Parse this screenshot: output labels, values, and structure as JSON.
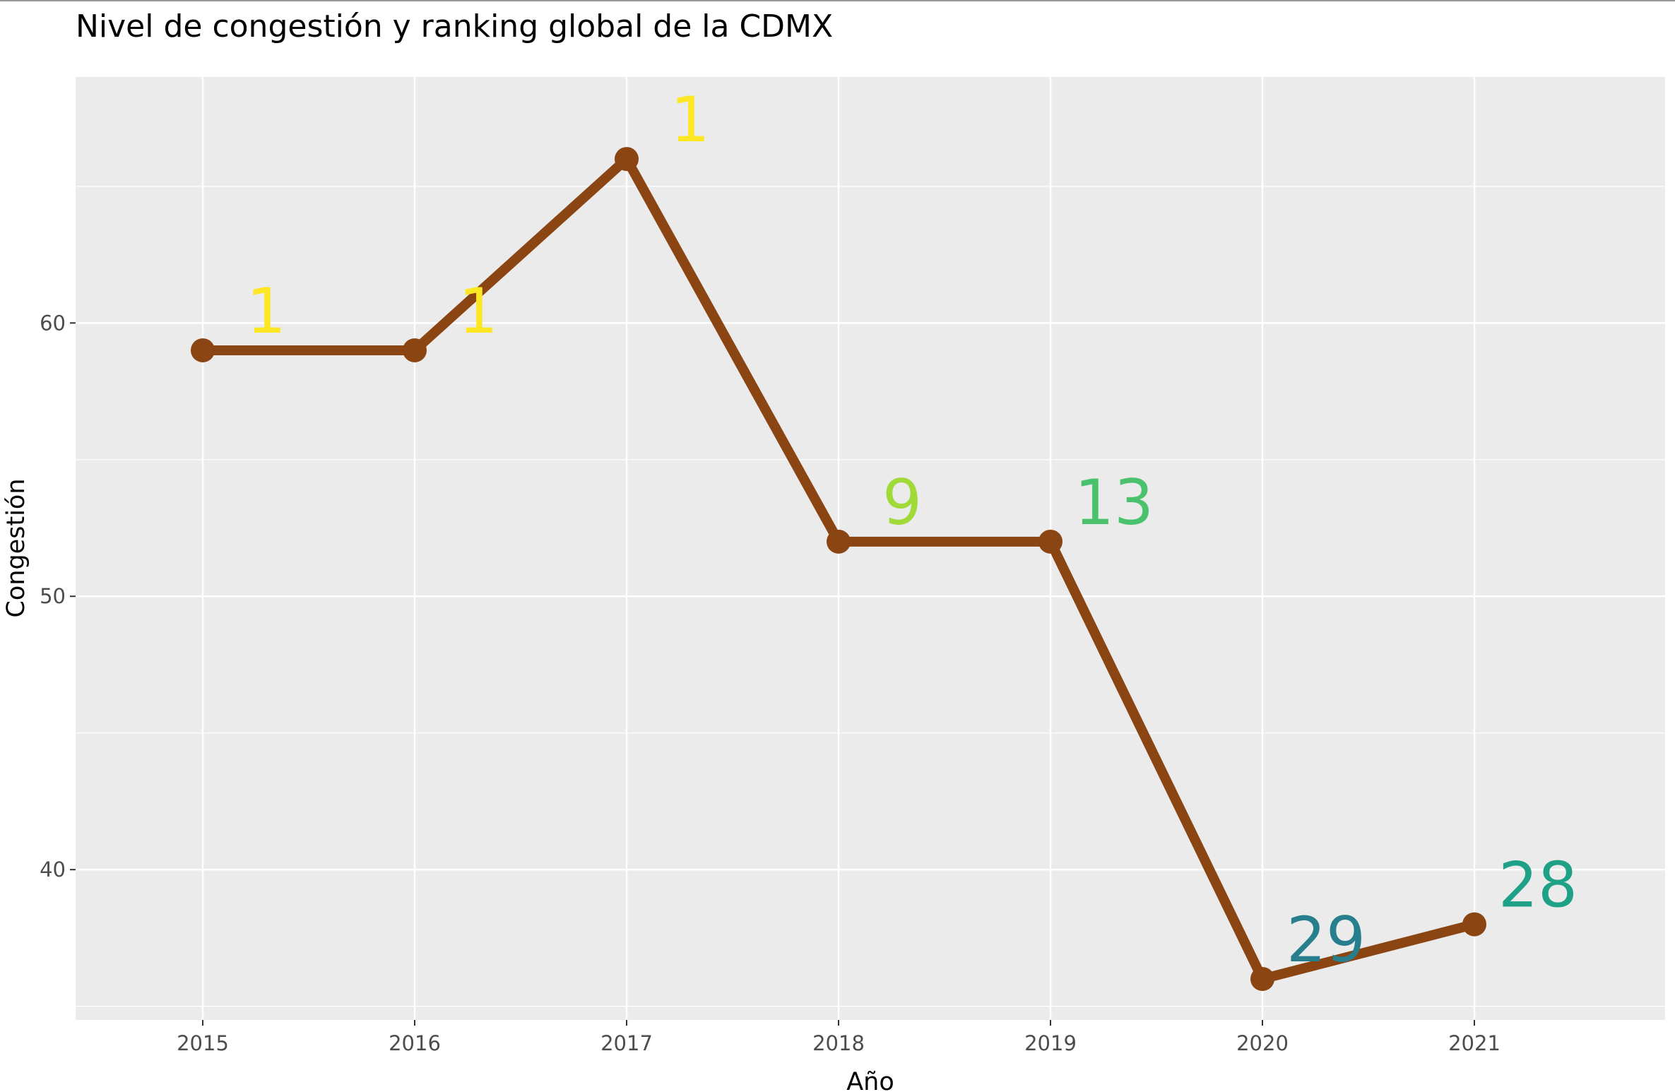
{
  "chart_data": {
    "type": "line",
    "title": "Nivel de congestión y ranking global de la CDMX",
    "xlabel": "Año",
    "ylabel": "Congestión",
    "x": [
      "2015",
      "2016",
      "2017",
      "2018",
      "2019",
      "2020",
      "2021"
    ],
    "y": [
      59,
      59,
      66,
      52,
      52,
      36,
      38
    ],
    "labels": [
      "1",
      "1",
      "1",
      "9",
      "13",
      "29",
      "28"
    ],
    "label_colors": [
      "#FDE725",
      "#FDE725",
      "#FDE725",
      "#A0DA39",
      "#4AC16D",
      "#277F8E",
      "#1FA187"
    ],
    "yticks": [
      "40",
      "50",
      "60"
    ],
    "xlim": [
      2014.4,
      2021.9
    ],
    "ylim": [
      34.5,
      69
    ],
    "line_color": "#8B4513",
    "panel_background": "#EBEBEB",
    "grid": true,
    "legend": "none"
  }
}
